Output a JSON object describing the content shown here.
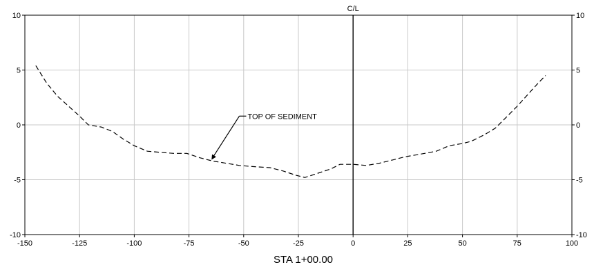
{
  "chart_data": {
    "type": "line",
    "title": "",
    "xlabel": "STA 1+00.00",
    "ylabel": "",
    "xlim": [
      -150,
      100
    ],
    "ylim": [
      -10,
      10
    ],
    "x_ticks": [
      -150,
      -125,
      -100,
      -75,
      -50,
      -25,
      0,
      25,
      50,
      75,
      100
    ],
    "y_ticks": [
      -10,
      -5,
      0,
      5,
      10
    ],
    "x_tick_labels": [
      "-150",
      "-125",
      "-100",
      "-75",
      "-50",
      "-25",
      "0",
      "25",
      "50",
      "75",
      "100"
    ],
    "y_tick_labels": [
      "-10",
      "-5",
      "0",
      "5",
      "10"
    ],
    "grid": true,
    "centerline": {
      "x": 0,
      "label": "C/L"
    },
    "series": [
      {
        "color": "#000000",
        "dash": true,
        "points": [
          [
            -145,
            5.4
          ],
          [
            -140,
            3.8
          ],
          [
            -135,
            2.6
          ],
          [
            -130,
            1.7
          ],
          [
            -125,
            0.8
          ],
          [
            -121,
            0.0
          ],
          [
            -115,
            -0.2
          ],
          [
            -110,
            -0.6
          ],
          [
            -105,
            -1.3
          ],
          [
            -100,
            -1.9
          ],
          [
            -94,
            -2.4
          ],
          [
            -88,
            -2.5
          ],
          [
            -82,
            -2.6
          ],
          [
            -76,
            -2.6
          ],
          [
            -70,
            -3.0
          ],
          [
            -64,
            -3.3
          ],
          [
            -58,
            -3.5
          ],
          [
            -52,
            -3.7
          ],
          [
            -46,
            -3.8
          ],
          [
            -38,
            -3.9
          ],
          [
            -32,
            -4.2
          ],
          [
            -26,
            -4.6
          ],
          [
            -22,
            -4.8
          ],
          [
            -16,
            -4.4
          ],
          [
            -10,
            -4.0
          ],
          [
            -6,
            -3.6
          ],
          [
            0,
            -3.6
          ],
          [
            6,
            -3.7
          ],
          [
            12,
            -3.5
          ],
          [
            18,
            -3.2
          ],
          [
            24,
            -2.9
          ],
          [
            30,
            -2.7
          ],
          [
            38,
            -2.4
          ],
          [
            44,
            -1.9
          ],
          [
            50,
            -1.7
          ],
          [
            54,
            -1.5
          ],
          [
            60,
            -0.9
          ],
          [
            65,
            -0.3
          ],
          [
            70,
            0.7
          ],
          [
            75,
            1.7
          ],
          [
            80,
            2.8
          ],
          [
            85,
            3.9
          ],
          [
            88,
            4.5
          ]
        ]
      }
    ],
    "annotation": {
      "text": "TOP OF SEDIMENT",
      "point": [
        -65,
        -3.3
      ],
      "label_at": [
        -52,
        0.8
      ]
    }
  },
  "colors": {
    "grid": "#c8c8c8",
    "axis": "#000000",
    "line": "#000000"
  }
}
